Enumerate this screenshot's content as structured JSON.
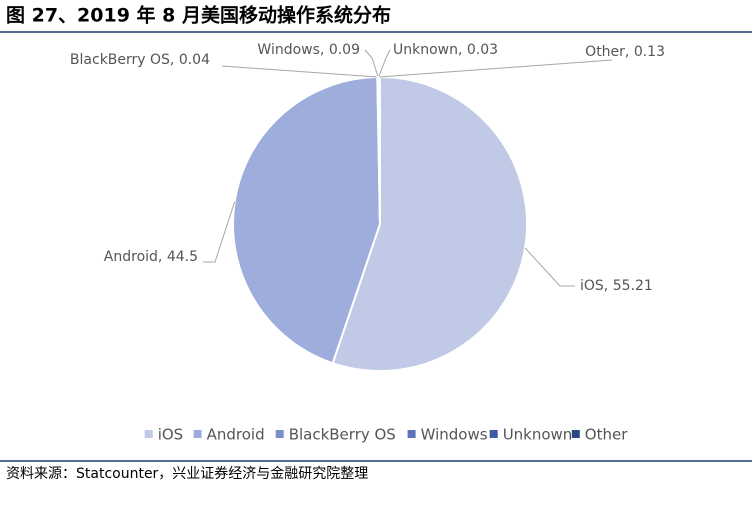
{
  "chart_data": {
    "type": "pie",
    "title": "图 27、2019 年 8 月美国移动操作系统分布",
    "categories": [
      "iOS",
      "Android",
      "BlackBerry OS",
      "Windows",
      "Unknown",
      "Other"
    ],
    "values": [
      55.21,
      44.5,
      0.04,
      0.09,
      0.03,
      0.13
    ],
    "value_labels": [
      "iOS, 55.21",
      "Android, 44.5",
      "BlackBerry OS, 0.04",
      "Windows, 0.09",
      "Unknown, 0.03",
      "Other, 0.13"
    ],
    "colors": [
      "#c0c9e5",
      "#9eaddb",
      "#7d90cd",
      "#5a73bb",
      "#3e5ba7",
      "#2d4788"
    ],
    "legend": "bottom",
    "source": "资料来源：Statcounter，兴业证券经济与金融研究院整理"
  }
}
